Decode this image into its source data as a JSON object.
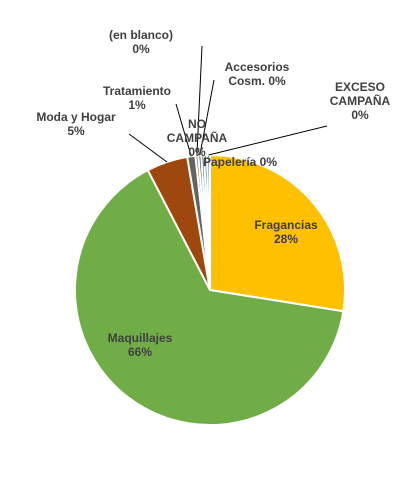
{
  "chart_data": {
    "type": "pie",
    "series": [
      {
        "labels": [
          "Fragancias",
          "Maquillajes",
          "Moda y Hogar",
          "Tratamiento",
          "(en blanco)",
          "Accesorios Cosm.",
          "NO CAMPAÑA",
          "Papelería",
          "EXCESO CAMPAÑA"
        ],
        "values": [
          28,
          66,
          5,
          1,
          0,
          0,
          0,
          0,
          0
        ],
        "display_labels": [
          [
            "Fragancias",
            "28%"
          ],
          [
            "Maquillajes",
            "66%"
          ],
          [
            "Moda y Hogar",
            "5%"
          ],
          [
            "Tratamiento",
            "1%"
          ],
          [
            "(en blanco)",
            "0%"
          ],
          [
            "Accesorios",
            "Cosm. 0%"
          ],
          [
            "NO",
            "CAMPAÑA",
            "0%"
          ],
          [
            "Papelería 0%"
          ],
          [
            "EXCESO",
            "CAMPAÑA",
            "0%"
          ]
        ]
      }
    ],
    "colors": [
      "#FFC000",
      "#70AD47",
      "#9E480E",
      "#636363",
      "#997300",
      "#264478",
      "#43682B",
      "#255E91",
      "#698ED0"
    ],
    "start_angle_deg": 0,
    "direction": "clockwise",
    "legend": "none"
  }
}
